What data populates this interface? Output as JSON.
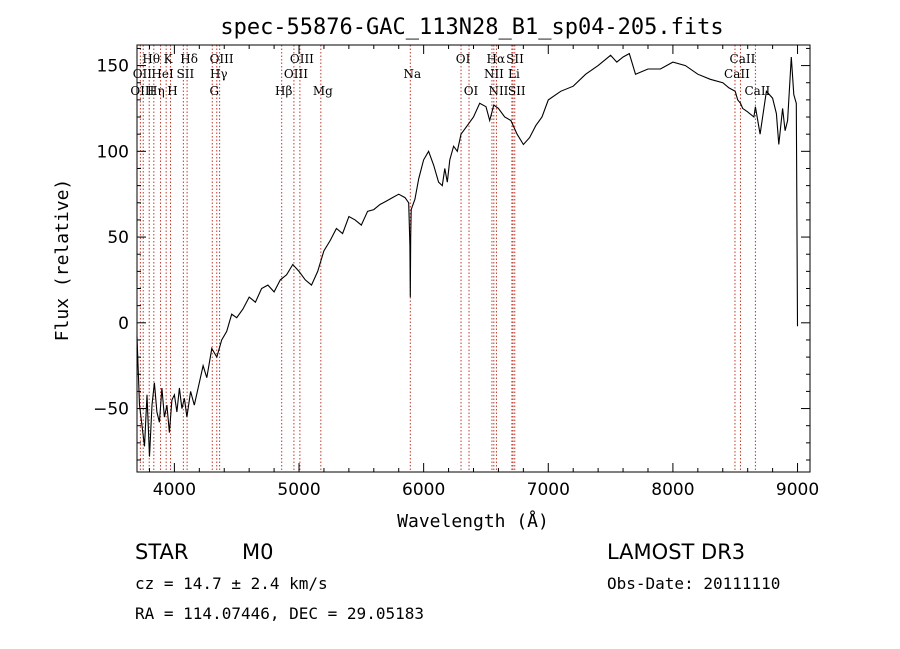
{
  "chart_data": {
    "type": "line",
    "title": "spec-55876-GAC_113N28_B1_sp04-205.fits",
    "xlabel": "Wavelength (Å)",
    "ylabel": "Flux (relative)",
    "xlim": [
      3700,
      9100
    ],
    "ylim": [
      -87,
      162
    ],
    "xticks": [
      4000,
      5000,
      6000,
      7000,
      8000,
      9000
    ],
    "yticks": [
      -50,
      0,
      50,
      100,
      150
    ],
    "grid": false,
    "series": [
      {
        "name": "spectrum",
        "x": [
          3700,
          3720,
          3740,
          3760,
          3780,
          3800,
          3820,
          3840,
          3860,
          3880,
          3900,
          3920,
          3940,
          3960,
          3980,
          4000,
          4020,
          4040,
          4060,
          4080,
          4100,
          4130,
          4160,
          4200,
          4230,
          4260,
          4300,
          4340,
          4380,
          4420,
          4460,
          4500,
          4550,
          4600,
          4650,
          4700,
          4750,
          4800,
          4850,
          4900,
          4950,
          5000,
          5050,
          5100,
          5150,
          5200,
          5250,
          5300,
          5350,
          5400,
          5450,
          5500,
          5550,
          5600,
          5650,
          5700,
          5750,
          5800,
          5850,
          5880,
          5890,
          5893,
          5896,
          5900,
          5910,
          5930,
          5960,
          6000,
          6040,
          6080,
          6120,
          6150,
          6170,
          6190,
          6210,
          6240,
          6270,
          6300,
          6350,
          6400,
          6450,
          6500,
          6530,
          6563,
          6600,
          6650,
          6700,
          6750,
          6800,
          6850,
          6900,
          6950,
          7000,
          7100,
          7200,
          7300,
          7400,
          7500,
          7550,
          7600,
          7650,
          7700,
          7800,
          7900,
          8000,
          8100,
          8200,
          8300,
          8400,
          8450,
          8500,
          8520,
          8542,
          8560,
          8600,
          8650,
          8662,
          8700,
          8750,
          8800,
          8830,
          8850,
          8880,
          8900,
          8920,
          8950,
          8970,
          8990,
          9000
        ],
        "y": [
          -8,
          -48,
          -60,
          -72,
          -42,
          -78,
          -48,
          -35,
          -52,
          -58,
          -38,
          -55,
          -48,
          -64,
          -45,
          -42,
          -52,
          -38,
          -50,
          -44,
          -55,
          -40,
          -48,
          -35,
          -25,
          -32,
          -15,
          -20,
          -10,
          -5,
          5,
          3,
          8,
          15,
          12,
          20,
          22,
          18,
          25,
          28,
          34,
          30,
          25,
          22,
          30,
          42,
          48,
          55,
          52,
          62,
          60,
          57,
          65,
          66,
          69,
          71,
          73,
          75,
          73,
          70,
          45,
          15,
          50,
          66,
          68,
          72,
          84,
          95,
          100,
          92,
          82,
          80,
          90,
          82,
          95,
          103,
          100,
          110,
          115,
          120,
          128,
          126,
          118,
          127,
          125,
          120,
          118,
          110,
          104,
          108,
          115,
          120,
          130,
          135,
          138,
          145,
          150,
          156,
          152,
          155,
          157,
          145,
          148,
          148,
          152,
          150,
          145,
          142,
          140,
          137,
          135,
          130,
          128,
          125,
          123,
          120,
          126,
          110,
          135,
          131,
          122,
          104,
          125,
          112,
          118,
          155,
          133,
          128,
          -2
        ]
      }
    ]
  },
  "line_labels": [
    {
      "label": "Hθ",
      "wl": 3798,
      "row": 1,
      "color": "#000000"
    },
    {
      "label": "OII",
      "wl": 3727,
      "row": 2,
      "color": "#000000"
    },
    {
      "label": "OIII",
      "wl": 3727,
      "row": 3,
      "color": "#000000"
    },
    {
      "label": "K",
      "wl": 3934,
      "row": 1,
      "color": "#000000"
    },
    {
      "label": "HeI",
      "wl": 3889,
      "row": 2,
      "color": "#000000"
    },
    {
      "label": "Hη",
      "wl": 3835,
      "row": 3,
      "color": "#000000"
    },
    {
      "label": "Hδ",
      "wl": 4102,
      "row": 1,
      "color": "#000000"
    },
    {
      "label": "SII",
      "wl": 4072,
      "row": 2,
      "color": "#000000"
    },
    {
      "label": "H",
      "wl": 3969,
      "row": 3,
      "color": "#000000"
    },
    {
      "label": "OIII",
      "wl": 4363,
      "row": 1,
      "color": "#000000"
    },
    {
      "label": "Hγ",
      "wl": 4340,
      "row": 2,
      "color": "#000000"
    },
    {
      "label": "G",
      "wl": 4304,
      "row": 3,
      "color": "#000000"
    },
    {
      "label": "OIII",
      "wl": 5007,
      "row": 1,
      "color": "#000000"
    },
    {
      "label": "OIII",
      "wl": 4959,
      "row": 2,
      "color": "#000000"
    },
    {
      "label": "Hβ",
      "wl": 4861,
      "row": 3,
      "color": "#000000"
    },
    {
      "label": "Mg",
      "wl": 5175,
      "row": 3,
      "color": "#000000"
    },
    {
      "label": "Na",
      "wl": 5893,
      "row": 2,
      "color": "#000000"
    },
    {
      "label": "OI",
      "wl": 6300,
      "row": 1,
      "color": "#000000"
    },
    {
      "label": "OI",
      "wl": 6364,
      "row": 3,
      "color": "#000000"
    },
    {
      "label": "Hα",
      "wl": 6563,
      "row": 1,
      "color": "#000000"
    },
    {
      "label": "SII",
      "wl": 6717,
      "row": 1,
      "color": "#000000"
    },
    {
      "label": "NII",
      "wl": 6548,
      "row": 2,
      "color": "#000000"
    },
    {
      "label": "Li",
      "wl": 6708,
      "row": 2,
      "color": "#000000"
    },
    {
      "label": "NII",
      "wl": 6584,
      "row": 3,
      "color": "#000000"
    },
    {
      "label": "SII",
      "wl": 6731,
      "row": 3,
      "color": "#000000"
    },
    {
      "label": "CaII",
      "wl": 8542,
      "row": 1,
      "color": "#000000"
    },
    {
      "label": "CaII",
      "wl": 8498,
      "row": 2,
      "color": "#000000"
    },
    {
      "label": "CaII",
      "wl": 8662,
      "row": 3,
      "color": "#000000"
    }
  ],
  "vlines": [
    3727,
    3750,
    3798,
    3835,
    3889,
    3934,
    3969,
    4072,
    4102,
    4304,
    4340,
    4363,
    4861,
    4959,
    5007,
    5175,
    5893,
    6300,
    6364,
    6548,
    6563,
    6584,
    6708,
    6717,
    6731,
    8498,
    8542,
    8662
  ],
  "colors": {
    "spectrum": "#000000",
    "vline": "#c0392b",
    "axis": "#000000"
  },
  "info": {
    "class_label": "STAR",
    "subclass": "M0",
    "survey": "LAMOST DR3",
    "redshift": "cz = 14.7 ± 2.4 km/s",
    "obs_date": "Obs-Date: 20111110",
    "coords": "RA = 114.07446, DEC =  29.05183"
  }
}
